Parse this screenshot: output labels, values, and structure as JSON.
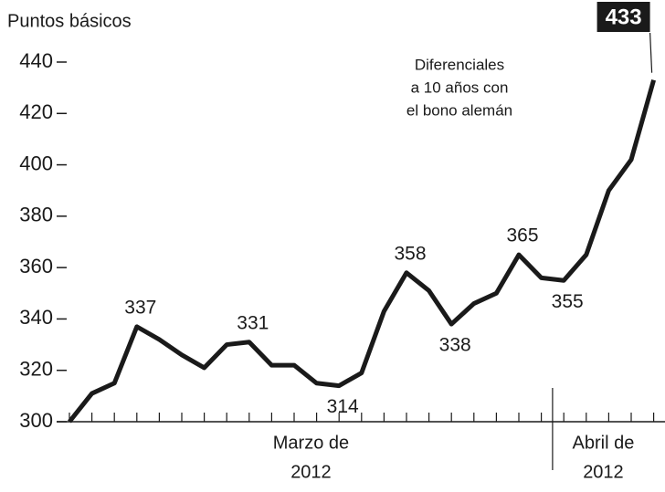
{
  "chart_data": {
    "type": "line",
    "y_axis_label": "Puntos básicos",
    "annotation": [
      "Diferenciales",
      "a 10 años con",
      "el bono alemán"
    ],
    "categories": [
      null,
      null,
      null,
      null,
      null,
      null,
      null,
      null,
      null,
      null,
      null,
      null,
      null,
      null,
      null,
      null,
      null,
      null,
      null,
      null,
      null,
      null,
      null,
      null,
      null,
      null,
      null
    ],
    "x_groups": [
      {
        "start": 0,
        "label": [
          "Marzo de",
          "2012"
        ]
      },
      {
        "start": 22,
        "label": [
          "Abril de",
          "2012"
        ]
      }
    ],
    "series": [
      {
        "color": "#1a1a1a",
        "values": [
          300,
          311,
          315,
          337,
          332,
          326,
          321,
          330,
          331,
          322,
          322,
          315,
          314,
          319,
          343,
          358,
          351,
          338,
          346,
          350,
          365,
          356,
          355,
          365,
          390,
          402,
          433
        ],
        "value_labels": [
          null,
          null,
          null,
          "337",
          null,
          null,
          null,
          null,
          "331",
          null,
          null,
          null,
          "314",
          null,
          null,
          "358",
          null,
          "338",
          null,
          null,
          "365",
          null,
          "355",
          null,
          null,
          null,
          "433"
        ]
      }
    ],
    "ylim": [
      300,
      440
    ],
    "yticks": [
      300,
      320,
      340,
      360,
      380,
      400,
      420,
      440
    ]
  }
}
